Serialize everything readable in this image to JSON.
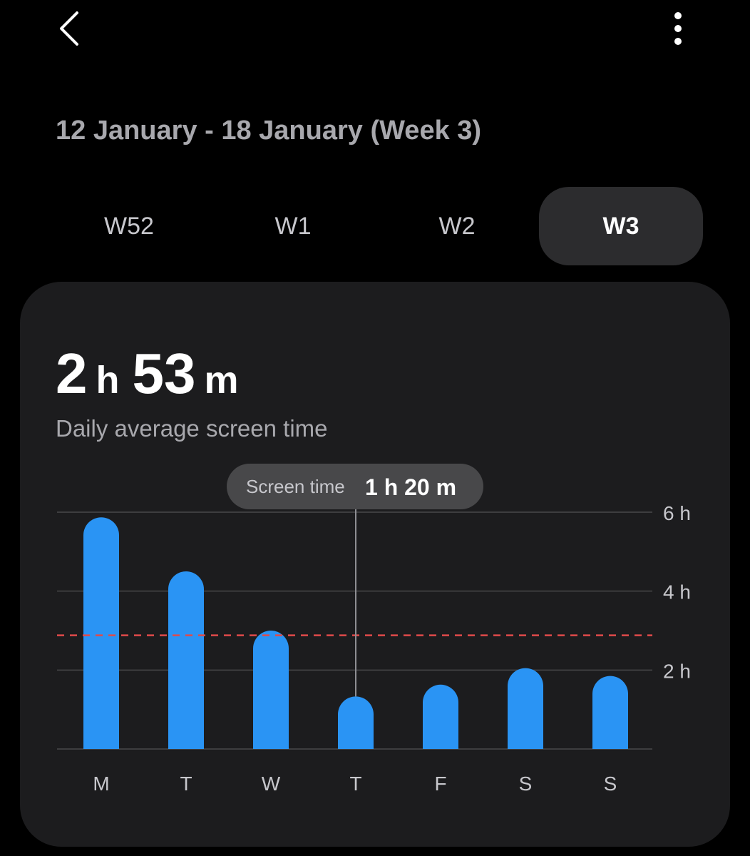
{
  "header": {
    "back_icon": "chevron-left-icon",
    "more_icon": "more-vertical-icon"
  },
  "range_title": "12 January - 18 January (Week 3)",
  "week_tabs": [
    {
      "label": "W52",
      "selected": false
    },
    {
      "label": "W1",
      "selected": false
    },
    {
      "label": "W2",
      "selected": false
    },
    {
      "label": "W3",
      "selected": true
    }
  ],
  "summary": {
    "hours_value": "2",
    "hours_unit": "h",
    "minutes_value": "53",
    "minutes_unit": "m",
    "label": "Daily average screen time"
  },
  "tooltip": {
    "label": "Screen time",
    "value": "1 h 20 m",
    "day_index": 3
  },
  "colors": {
    "bar": "#2a94f4",
    "average_line": "#e04a4a",
    "gridline": "#48484a",
    "tooltip_bg": "#48484a"
  },
  "chart_data": {
    "type": "bar",
    "categories": [
      "M",
      "T",
      "W",
      "T",
      "F",
      "S",
      "S"
    ],
    "series": [
      {
        "values": [
          5.87,
          4.5,
          3.0,
          1.33,
          1.63,
          2.05,
          1.85
        ]
      }
    ],
    "average": 2.88,
    "yticks": [
      "2 h",
      "4 h",
      "6 h"
    ],
    "ytick_values": [
      2,
      4,
      6
    ],
    "ylim": [
      0,
      6
    ],
    "grid": true,
    "ylabel": "",
    "xlabel": ""
  }
}
